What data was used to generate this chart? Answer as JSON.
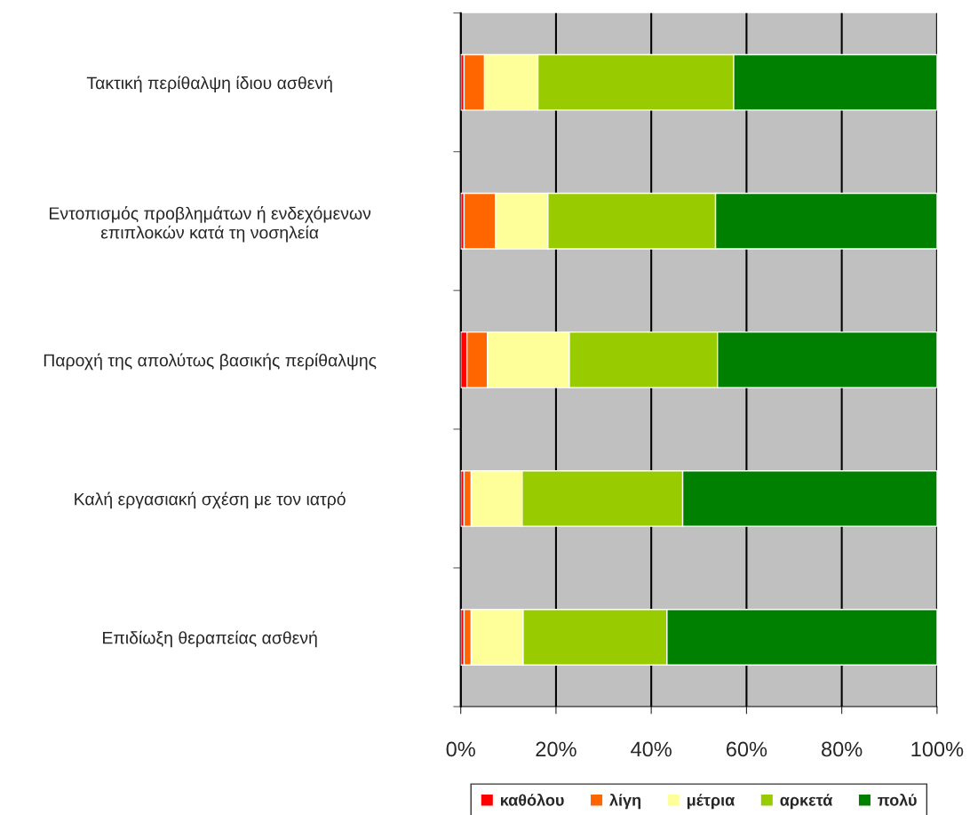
{
  "chart_data": {
    "type": "bar",
    "orientation": "horizontal",
    "stacked": true,
    "categories": [
      "Τακτική περίθαλψη ίδιου ασθενή",
      "Εντοπισμός προβλημάτων ή ενδεχόμενων\nεπιπλοκών κατά τη νοσηλεία",
      "Παροχή της απολύτως βασικής περίθαλψης",
      "Καλή εργασιακή σχέση με τον ιατρό",
      "Επιδίωξη θεραπείας ασθενή"
    ],
    "series": [
      {
        "name": "καθόλου",
        "color": "#ff0000",
        "values": [
          0.7,
          0.7,
          1.3,
          0.7,
          0.7
        ]
      },
      {
        "name": "λίγη",
        "color": "#ff6600",
        "values": [
          4.3,
          6.6,
          4.3,
          1.5,
          1.5
        ]
      },
      {
        "name": "μέτρια",
        "color": "#ffff99",
        "values": [
          11.2,
          11.0,
          17.2,
          10.7,
          10.9
        ]
      },
      {
        "name": "αρκετά",
        "color": "#99cc00",
        "values": [
          41.1,
          35.2,
          31.1,
          33.7,
          30.2
        ]
      },
      {
        "name": "πολύ",
        "color": "#008000",
        "values": [
          42.7,
          46.5,
          46.1,
          53.4,
          56.7
        ]
      }
    ],
    "xlim": [
      0,
      100
    ],
    "xticks": [
      {
        "value": 0,
        "label": "0%"
      },
      {
        "value": 20,
        "label": "20%"
      },
      {
        "value": 40,
        "label": "40%"
      },
      {
        "value": 60,
        "label": "60%"
      },
      {
        "value": 80,
        "label": "80%"
      },
      {
        "value": 100,
        "label": "100%"
      }
    ],
    "grid": "x",
    "legend": "bottom"
  }
}
